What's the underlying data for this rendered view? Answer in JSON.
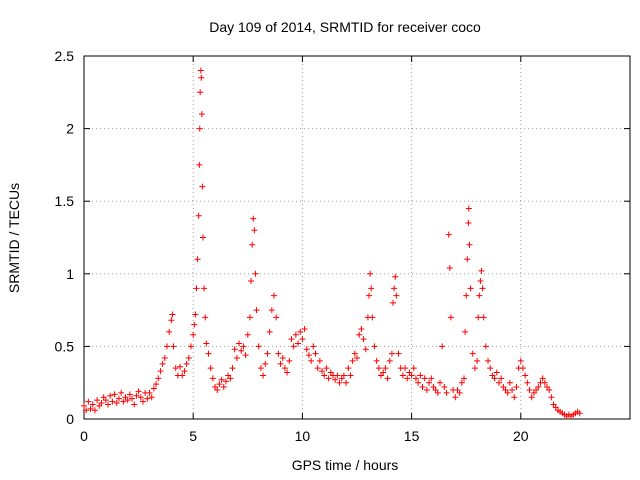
{
  "chart_data": {
    "type": "scatter",
    "title": "Day 109 of 2014, SRMTID for receiver coco",
    "xlabel": "GPS time / hours",
    "ylabel": "SRMTID / TECUs",
    "xlim": [
      0,
      25
    ],
    "ylim": [
      0,
      2.5
    ],
    "xticks": [
      0,
      5,
      10,
      15,
      20
    ],
    "xtick_labels": [
      "0",
      "5",
      "10",
      "15",
      "20"
    ],
    "yticks": [
      0,
      0.5,
      1,
      1.5,
      2,
      2.5
    ],
    "ytick_labels": [
      "0",
      "0.5",
      "1",
      "1.5",
      "2",
      "2.5"
    ],
    "grid": true,
    "marker": "+",
    "color": "#ff0000",
    "series": [
      {
        "name": "SRMTID",
        "points": [
          [
            0.0,
            0.09
          ],
          [
            0.1,
            0.06
          ],
          [
            0.2,
            0.12
          ],
          [
            0.3,
            0.07
          ],
          [
            0.4,
            0.1
          ],
          [
            0.5,
            0.06
          ],
          [
            0.6,
            0.13
          ],
          [
            0.7,
            0.09
          ],
          [
            0.8,
            0.11
          ],
          [
            0.9,
            0.15
          ],
          [
            1.0,
            0.13
          ],
          [
            1.1,
            0.1
          ],
          [
            1.2,
            0.16
          ],
          [
            1.3,
            0.12
          ],
          [
            1.4,
            0.17
          ],
          [
            1.5,
            0.11
          ],
          [
            1.6,
            0.14
          ],
          [
            1.7,
            0.18
          ],
          [
            1.8,
            0.12
          ],
          [
            1.9,
            0.15
          ],
          [
            2.0,
            0.13
          ],
          [
            2.1,
            0.17
          ],
          [
            2.2,
            0.14
          ],
          [
            2.3,
            0.1
          ],
          [
            2.4,
            0.16
          ],
          [
            2.5,
            0.19
          ],
          [
            2.6,
            0.15
          ],
          [
            2.7,
            0.12
          ],
          [
            2.8,
            0.18
          ],
          [
            2.9,
            0.14
          ],
          [
            3.0,
            0.18
          ],
          [
            3.1,
            0.15
          ],
          [
            3.2,
            0.21
          ],
          [
            3.3,
            0.24
          ],
          [
            3.4,
            0.28
          ],
          [
            3.5,
            0.33
          ],
          [
            3.6,
            0.38
          ],
          [
            3.7,
            0.42
          ],
          [
            3.8,
            0.5
          ],
          [
            3.9,
            0.6
          ],
          [
            4.0,
            0.68
          ],
          [
            4.05,
            0.72
          ],
          [
            4.1,
            0.5
          ],
          [
            4.2,
            0.35
          ],
          [
            4.3,
            0.3
          ],
          [
            4.4,
            0.36
          ],
          [
            4.5,
            0.3
          ],
          [
            4.6,
            0.33
          ],
          [
            4.7,
            0.38
          ],
          [
            4.8,
            0.42
          ],
          [
            4.9,
            0.5
          ],
          [
            5.0,
            0.58
          ],
          [
            5.05,
            0.65
          ],
          [
            5.1,
            0.72
          ],
          [
            5.15,
            0.9
          ],
          [
            5.2,
            1.1
          ],
          [
            5.25,
            1.4
          ],
          [
            5.28,
            1.75
          ],
          [
            5.3,
            2.0
          ],
          [
            5.32,
            2.25
          ],
          [
            5.35,
            2.4
          ],
          [
            5.37,
            2.35
          ],
          [
            5.4,
            2.1
          ],
          [
            5.42,
            1.6
          ],
          [
            5.45,
            1.25
          ],
          [
            5.5,
            0.9
          ],
          [
            5.55,
            0.7
          ],
          [
            5.6,
            0.52
          ],
          [
            5.7,
            0.45
          ],
          [
            5.8,
            0.35
          ],
          [
            5.9,
            0.28
          ],
          [
            6.0,
            0.22
          ],
          [
            6.1,
            0.2
          ],
          [
            6.2,
            0.24
          ],
          [
            6.3,
            0.27
          ],
          [
            6.4,
            0.22
          ],
          [
            6.5,
            0.26
          ],
          [
            6.6,
            0.3
          ],
          [
            6.7,
            0.28
          ],
          [
            6.8,
            0.35
          ],
          [
            6.9,
            0.48
          ],
          [
            7.0,
            0.42
          ],
          [
            7.1,
            0.52
          ],
          [
            7.2,
            0.47
          ],
          [
            7.3,
            0.5
          ],
          [
            7.4,
            0.44
          ],
          [
            7.5,
            0.58
          ],
          [
            7.6,
            0.7
          ],
          [
            7.65,
            0.95
          ],
          [
            7.7,
            1.2
          ],
          [
            7.75,
            1.38
          ],
          [
            7.8,
            1.3
          ],
          [
            7.85,
            1.0
          ],
          [
            7.9,
            0.75
          ],
          [
            8.0,
            0.5
          ],
          [
            8.1,
            0.35
          ],
          [
            8.2,
            0.3
          ],
          [
            8.3,
            0.38
          ],
          [
            8.4,
            0.45
          ],
          [
            8.5,
            0.6
          ],
          [
            8.6,
            0.75
          ],
          [
            8.7,
            0.85
          ],
          [
            8.8,
            0.7
          ],
          [
            8.9,
            0.45
          ],
          [
            9.0,
            0.38
          ],
          [
            9.1,
            0.42
          ],
          [
            9.2,
            0.35
          ],
          [
            9.3,
            0.32
          ],
          [
            9.4,
            0.4
          ],
          [
            9.5,
            0.55
          ],
          [
            9.6,
            0.5
          ],
          [
            9.7,
            0.58
          ],
          [
            9.8,
            0.52
          ],
          [
            9.9,
            0.6
          ],
          [
            10.0,
            0.55
          ],
          [
            10.1,
            0.62
          ],
          [
            10.2,
            0.48
          ],
          [
            10.3,
            0.44
          ],
          [
            10.4,
            0.4
          ],
          [
            10.5,
            0.5
          ],
          [
            10.6,
            0.45
          ],
          [
            10.7,
            0.35
          ],
          [
            10.8,
            0.4
          ],
          [
            10.9,
            0.33
          ],
          [
            11.0,
            0.3
          ],
          [
            11.1,
            0.35
          ],
          [
            11.2,
            0.28
          ],
          [
            11.3,
            0.32
          ],
          [
            11.4,
            0.3
          ],
          [
            11.5,
            0.27
          ],
          [
            11.6,
            0.3
          ],
          [
            11.7,
            0.25
          ],
          [
            11.8,
            0.28
          ],
          [
            11.9,
            0.3
          ],
          [
            12.0,
            0.25
          ],
          [
            12.1,
            0.35
          ],
          [
            12.2,
            0.3
          ],
          [
            12.3,
            0.4
          ],
          [
            12.4,
            0.45
          ],
          [
            12.5,
            0.42
          ],
          [
            12.6,
            0.58
          ],
          [
            12.7,
            0.62
          ],
          [
            12.8,
            0.55
          ],
          [
            12.9,
            0.48
          ],
          [
            13.0,
            0.7
          ],
          [
            13.05,
            0.85
          ],
          [
            13.1,
            1.0
          ],
          [
            13.15,
            0.9
          ],
          [
            13.2,
            0.7
          ],
          [
            13.3,
            0.5
          ],
          [
            13.4,
            0.4
          ],
          [
            13.5,
            0.35
          ],
          [
            13.6,
            0.3
          ],
          [
            13.7,
            0.32
          ],
          [
            13.8,
            0.35
          ],
          [
            13.9,
            0.28
          ],
          [
            14.0,
            0.4
          ],
          [
            14.1,
            0.45
          ],
          [
            14.15,
            0.8
          ],
          [
            14.2,
            0.9
          ],
          [
            14.25,
            0.98
          ],
          [
            14.3,
            0.85
          ],
          [
            14.4,
            0.45
          ],
          [
            14.5,
            0.35
          ],
          [
            14.6,
            0.3
          ],
          [
            14.7,
            0.35
          ],
          [
            14.8,
            0.28
          ],
          [
            14.9,
            0.32
          ],
          [
            15.0,
            0.3
          ],
          [
            15.1,
            0.35
          ],
          [
            15.2,
            0.28
          ],
          [
            15.3,
            0.25
          ],
          [
            15.4,
            0.3
          ],
          [
            15.5,
            0.22
          ],
          [
            15.6,
            0.28
          ],
          [
            15.7,
            0.2
          ],
          [
            15.8,
            0.25
          ],
          [
            15.9,
            0.28
          ],
          [
            16.0,
            0.22
          ],
          [
            16.1,
            0.2
          ],
          [
            16.2,
            0.18
          ],
          [
            16.3,
            0.25
          ],
          [
            16.4,
            0.5
          ],
          [
            16.5,
            0.22
          ],
          [
            16.6,
            0.18
          ],
          [
            16.7,
            1.27
          ],
          [
            16.75,
            1.04
          ],
          [
            16.8,
            0.7
          ],
          [
            16.9,
            0.2
          ],
          [
            17.0,
            0.15
          ],
          [
            17.1,
            0.2
          ],
          [
            17.2,
            0.18
          ],
          [
            17.3,
            0.25
          ],
          [
            17.4,
            0.28
          ],
          [
            17.45,
            0.6
          ],
          [
            17.5,
            0.85
          ],
          [
            17.55,
            1.1
          ],
          [
            17.6,
            1.35
          ],
          [
            17.62,
            1.45
          ],
          [
            17.65,
            1.2
          ],
          [
            17.7,
            0.9
          ],
          [
            17.8,
            0.45
          ],
          [
            17.9,
            0.35
          ],
          [
            18.0,
            0.4
          ],
          [
            18.05,
            0.7
          ],
          [
            18.1,
            0.85
          ],
          [
            18.15,
            0.95
          ],
          [
            18.2,
            1.02
          ],
          [
            18.25,
            0.9
          ],
          [
            18.3,
            0.7
          ],
          [
            18.4,
            0.5
          ],
          [
            18.5,
            0.4
          ],
          [
            18.6,
            0.35
          ],
          [
            18.7,
            0.3
          ],
          [
            18.8,
            0.28
          ],
          [
            18.9,
            0.32
          ],
          [
            19.0,
            0.25
          ],
          [
            19.1,
            0.28
          ],
          [
            19.2,
            0.22
          ],
          [
            19.3,
            0.2
          ],
          [
            19.4,
            0.18
          ],
          [
            19.5,
            0.25
          ],
          [
            19.6,
            0.2
          ],
          [
            19.7,
            0.15
          ],
          [
            19.8,
            0.22
          ],
          [
            19.9,
            0.35
          ],
          [
            20.0,
            0.4
          ],
          [
            20.1,
            0.35
          ],
          [
            20.2,
            0.3
          ],
          [
            20.3,
            0.25
          ],
          [
            20.4,
            0.2
          ],
          [
            20.5,
            0.15
          ],
          [
            20.6,
            0.18
          ],
          [
            20.7,
            0.2
          ],
          [
            20.8,
            0.22
          ],
          [
            20.9,
            0.25
          ],
          [
            21.0,
            0.28
          ],
          [
            21.1,
            0.25
          ],
          [
            21.2,
            0.22
          ],
          [
            21.3,
            0.2
          ],
          [
            21.4,
            0.15
          ],
          [
            21.5,
            0.1
          ],
          [
            21.6,
            0.08
          ],
          [
            21.7,
            0.06
          ],
          [
            21.8,
            0.05
          ],
          [
            21.9,
            0.04
          ],
          [
            22.0,
            0.03
          ],
          [
            22.1,
            0.02
          ],
          [
            22.2,
            0.03
          ],
          [
            22.3,
            0.02
          ],
          [
            22.4,
            0.03
          ],
          [
            22.5,
            0.04
          ],
          [
            22.6,
            0.05
          ],
          [
            22.7,
            0.04
          ]
        ]
      }
    ]
  }
}
